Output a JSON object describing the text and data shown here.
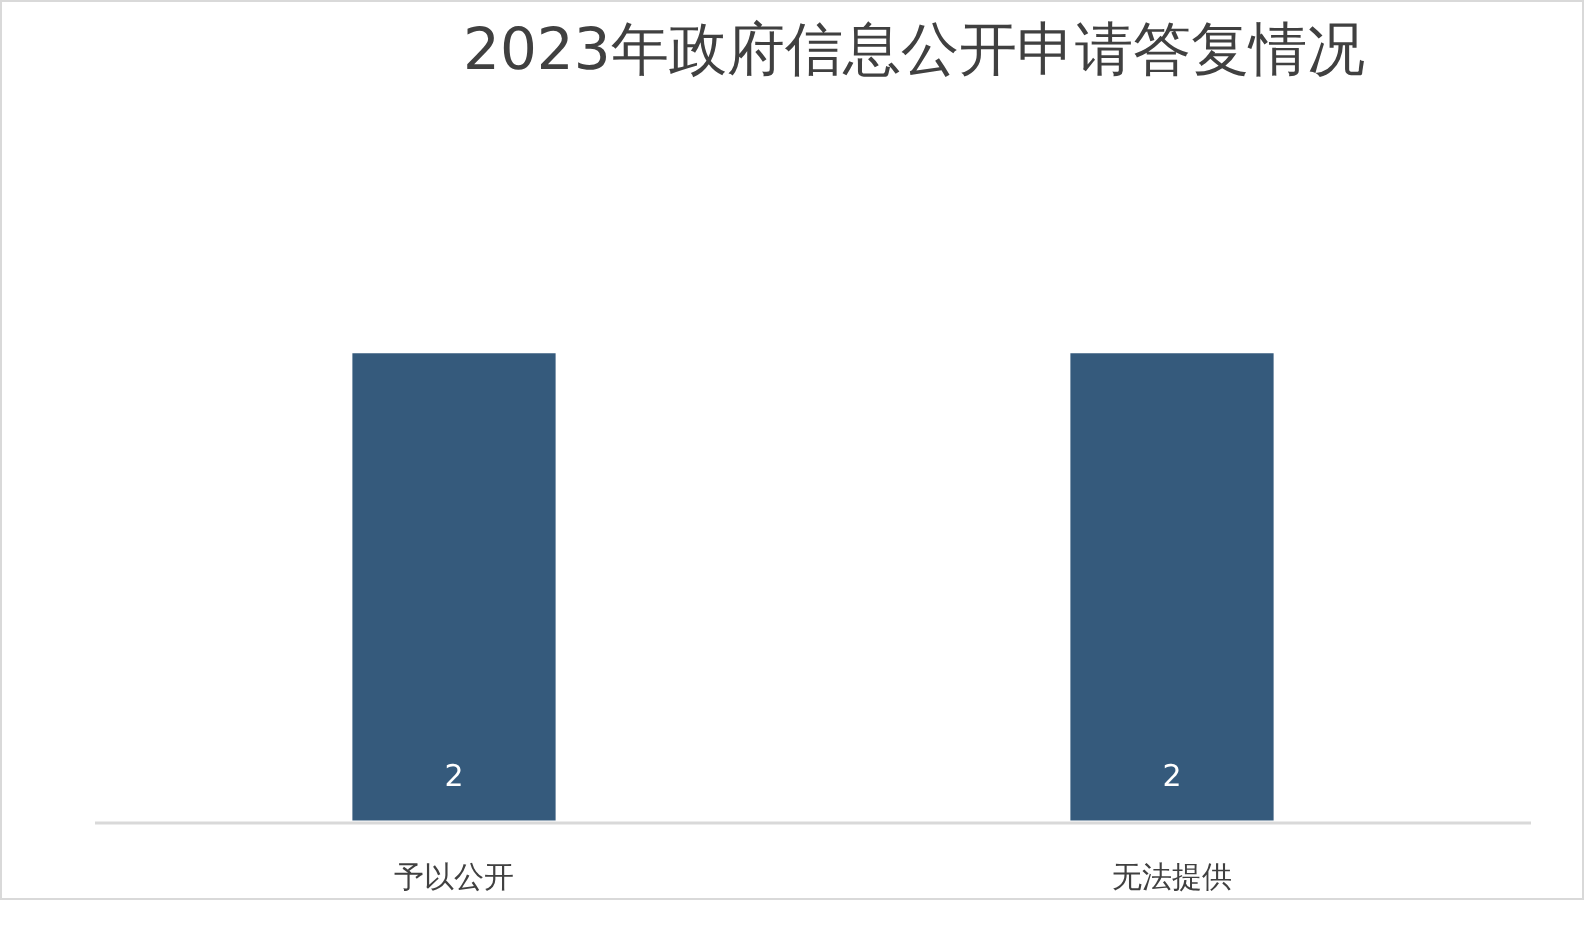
{
  "chart_data": {
    "type": "bar",
    "title": "2023年政府信息公开申请答复情况",
    "categories": [
      "予以公开",
      "无法提供"
    ],
    "values": [
      2,
      2
    ],
    "color": "#355a7c",
    "data_labels": true
  }
}
